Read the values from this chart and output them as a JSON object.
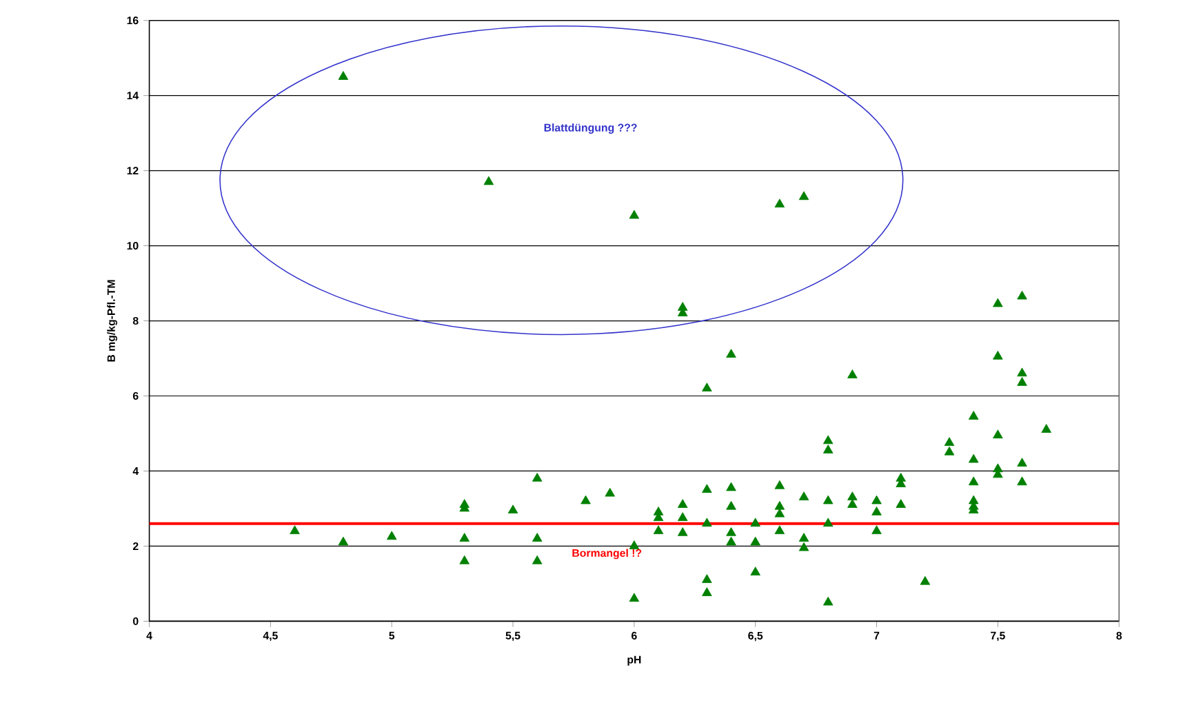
{
  "chart_data": {
    "type": "scatter",
    "xlabel": "pH",
    "ylabel": "B mg/kg-Pfl.-TM",
    "xlim": [
      4,
      8
    ],
    "ylim": [
      0,
      16
    ],
    "xticks": [
      4,
      {
        "value": 4.5,
        "label": "4,5"
      },
      5,
      {
        "value": 5.5,
        "label": "5,5"
      },
      6,
      {
        "value": 6.5,
        "label": "6,5"
      },
      7,
      {
        "value": 7.5,
        "label": "7,5"
      },
      8
    ],
    "yticks": [
      0,
      2,
      4,
      6,
      8,
      10,
      12,
      14,
      16
    ],
    "grid": "y",
    "marker": "triangle",
    "series": [
      {
        "color": "#008000",
        "x": [
          4.6,
          4.8,
          4.8,
          5.0,
          5.3,
          5.3,
          5.3,
          5.3,
          5.4,
          5.5,
          5.6,
          5.6,
          5.6,
          5.8,
          5.9,
          6.0,
          6.0,
          6.0,
          6.1,
          6.1,
          6.1,
          6.2,
          6.2,
          6.2,
          6.2,
          6.2,
          6.3,
          6.3,
          6.3,
          6.3,
          6.3,
          6.4,
          6.4,
          6.4,
          6.4,
          6.4,
          6.5,
          6.5,
          6.5,
          6.6,
          6.6,
          6.6,
          6.6,
          6.6,
          6.7,
          6.7,
          6.7,
          6.7,
          6.8,
          6.8,
          6.8,
          6.8,
          6.8,
          6.9,
          6.9,
          6.9,
          7.0,
          7.0,
          7.0,
          7.1,
          7.1,
          7.1,
          7.2,
          7.3,
          7.3,
          7.4,
          7.4,
          7.4,
          7.4,
          7.4,
          7.4,
          7.5,
          7.5,
          7.5,
          7.5,
          7.5,
          7.6,
          7.6,
          7.6,
          7.6,
          7.6,
          7.7
        ],
        "values": [
          2.4,
          14.5,
          2.1,
          2.25,
          3.1,
          3.0,
          2.2,
          1.6,
          11.7,
          2.95,
          3.8,
          2.2,
          1.6,
          3.2,
          3.4,
          10.8,
          2.0,
          0.6,
          2.9,
          2.75,
          2.4,
          8.35,
          8.2,
          3.1,
          2.75,
          2.35,
          6.2,
          3.5,
          2.6,
          1.1,
          0.75,
          7.1,
          3.55,
          3.05,
          2.35,
          2.1,
          2.6,
          2.1,
          1.3,
          11.1,
          3.6,
          3.05,
          2.85,
          2.4,
          11.3,
          3.3,
          2.2,
          1.95,
          4.8,
          4.55,
          3.2,
          2.6,
          0.5,
          6.55,
          3.3,
          3.1,
          3.2,
          2.9,
          2.4,
          3.8,
          3.65,
          3.1,
          1.05,
          4.75,
          4.5,
          5.45,
          4.3,
          3.7,
          3.2,
          3.05,
          2.95,
          8.45,
          7.05,
          4.95,
          4.05,
          3.9,
          8.65,
          6.6,
          6.35,
          4.2,
          3.7,
          5.1
        ]
      }
    ],
    "ref_lines": [
      {
        "axis": "y",
        "value": 2.6,
        "label": "Bormangel !?",
        "color": "#ff0000"
      }
    ],
    "annotations": [
      "Blattdüngung ???"
    ]
  }
}
